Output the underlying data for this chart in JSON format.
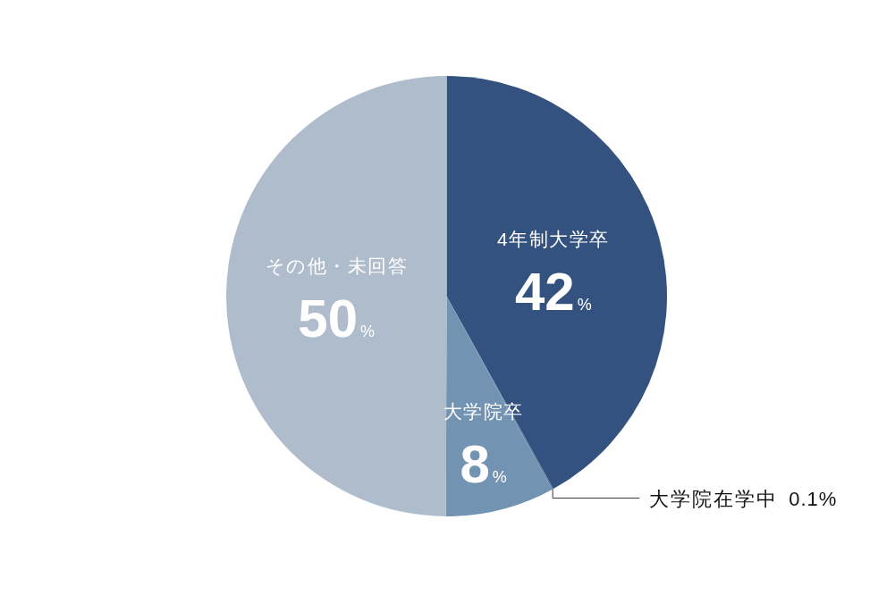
{
  "chart_data": {
    "type": "pie",
    "categories": [
      "4年制大学卒",
      "大学院在学中",
      "大学院卒",
      "その他・未回答"
    ],
    "values": [
      42,
      0.1,
      8,
      50
    ],
    "colors": [
      "#34527f",
      "#5b7aa3",
      "#7393b3",
      "#afbccb"
    ],
    "value_labels": [
      "42%",
      "0.1%",
      "8%",
      "50%"
    ]
  }
}
